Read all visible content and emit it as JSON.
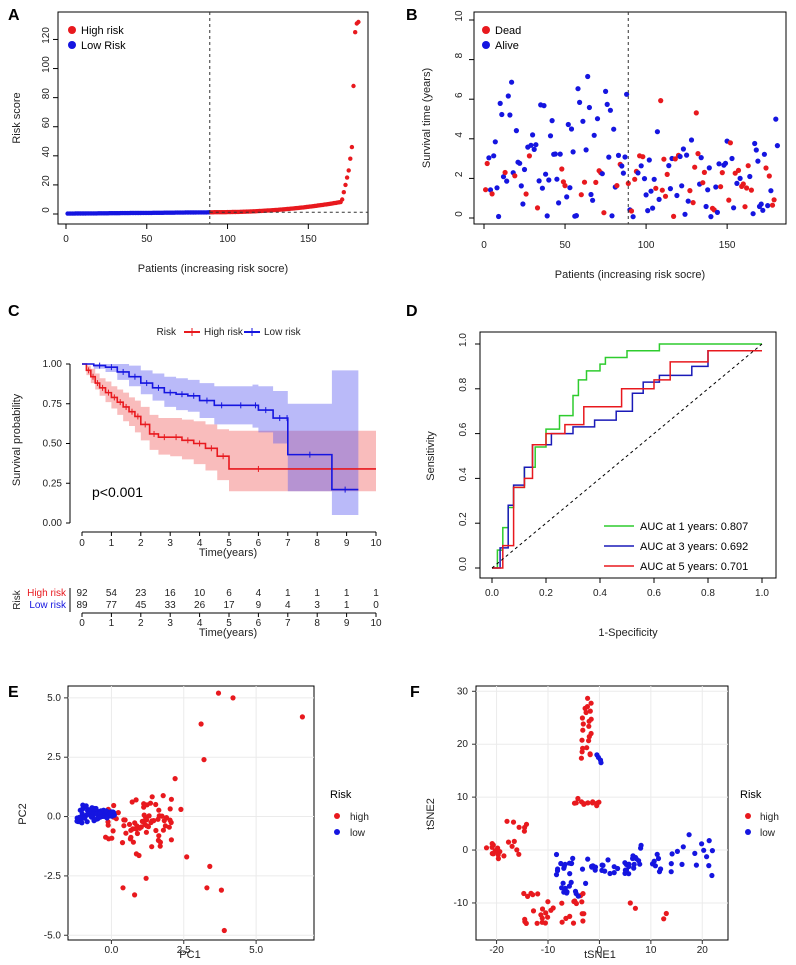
{
  "chart_data": [
    {
      "panel": "A",
      "type": "scatter",
      "xlabel": "Patients (increasing risk socre)",
      "ylabel": "Risk score",
      "xlim": [
        0,
        182
      ],
      "ylim": [
        0,
        132
      ],
      "xticks": [
        0,
        50,
        100,
        150
      ],
      "yticks": [
        0,
        20,
        40,
        60,
        80,
        100,
        120
      ],
      "cutoff_index": 89,
      "cutoff_score": 1.2,
      "n_low": 89,
      "n_high": 92,
      "series": [
        {
          "name": "High risk",
          "color": "#e8191e"
        },
        {
          "name": "Low Risk",
          "color": "#1515e0"
        }
      ],
      "tail_scores": [
        10,
        15,
        20,
        25,
        30,
        38,
        46,
        88,
        125,
        131,
        132
      ],
      "legend": "top-left"
    },
    {
      "panel": "B",
      "type": "scatter",
      "xlabel": "Patients (increasing risk socre)",
      "ylabel": "Survival time (years)",
      "xlim": [
        0,
        182
      ],
      "ylim": [
        0,
        10
      ],
      "xticks": [
        0,
        50,
        100,
        150
      ],
      "yticks": [
        0,
        2,
        4,
        6,
        8,
        10
      ],
      "cutoff_index": 89,
      "series": [
        {
          "name": "Dead",
          "color": "#e8191e"
        },
        {
          "name": "Alive",
          "color": "#1515e0"
        }
      ],
      "legend": "top-left"
    },
    {
      "panel": "C",
      "type": "line",
      "title": "Risk",
      "xlabel": "Time(years)",
      "ylabel": "Survival probability",
      "xlim": [
        0,
        10
      ],
      "ylim": [
        0,
        1
      ],
      "xticks": [
        0,
        1,
        2,
        3,
        4,
        5,
        6,
        7,
        8,
        9,
        10
      ],
      "yticks": [
        "0.00",
        "0.25",
        "0.50",
        "0.75",
        "1.00"
      ],
      "annotation": "p<0.001",
      "series": [
        {
          "name": "High risk",
          "color": "#e8191e",
          "x": [
            0,
            0.15,
            0.3,
            0.45,
            0.6,
            0.8,
            1.0,
            1.2,
            1.4,
            1.6,
            1.8,
            2.0,
            2.3,
            2.6,
            3.0,
            3.4,
            3.8,
            4.2,
            4.6,
            5.0,
            7.0,
            10.0
          ],
          "y": [
            1.0,
            0.96,
            0.92,
            0.88,
            0.85,
            0.82,
            0.79,
            0.76,
            0.73,
            0.7,
            0.67,
            0.62,
            0.56,
            0.54,
            0.54,
            0.52,
            0.5,
            0.47,
            0.42,
            0.34,
            0.34,
            0.34
          ],
          "lower": [
            1.0,
            0.93,
            0.88,
            0.84,
            0.8,
            0.76,
            0.72,
            0.68,
            0.64,
            0.61,
            0.57,
            0.52,
            0.46,
            0.43,
            0.42,
            0.4,
            0.37,
            0.33,
            0.27,
            0.2,
            0.2,
            0.2
          ],
          "upper": [
            1.0,
            0.99,
            0.97,
            0.94,
            0.91,
            0.89,
            0.86,
            0.84,
            0.82,
            0.79,
            0.77,
            0.73,
            0.68,
            0.66,
            0.66,
            0.65,
            0.64,
            0.62,
            0.59,
            0.58,
            0.58,
            0.58
          ]
        },
        {
          "name": "Low risk",
          "color": "#1515e0",
          "x": [
            0,
            0.4,
            0.8,
            1.2,
            1.6,
            2.0,
            2.4,
            2.8,
            3.2,
            3.6,
            4.0,
            4.5,
            5.0,
            5.8,
            6.0,
            6.5,
            6.95,
            7.0,
            8.5,
            9.4
          ],
          "y": [
            1.0,
            0.99,
            0.98,
            0.95,
            0.92,
            0.88,
            0.85,
            0.82,
            0.81,
            0.8,
            0.77,
            0.74,
            0.74,
            0.74,
            0.71,
            0.66,
            0.66,
            0.43,
            0.21,
            0.21
          ],
          "lower": [
            1.0,
            0.97,
            0.95,
            0.9,
            0.86,
            0.81,
            0.77,
            0.73,
            0.71,
            0.7,
            0.66,
            0.62,
            0.62,
            0.6,
            0.57,
            0.5,
            0.5,
            0.2,
            0.05,
            0.05
          ],
          "upper": [
            1.0,
            1.0,
            1.0,
            1.0,
            0.99,
            0.96,
            0.94,
            0.92,
            0.91,
            0.9,
            0.88,
            0.86,
            0.86,
            0.87,
            0.86,
            0.83,
            0.83,
            0.75,
            0.96,
            0.96
          ]
        }
      ],
      "risk_table": {
        "header": "Risk",
        "rows": [
          {
            "label": "High risk",
            "color": "#e8191e",
            "values": [
              "92",
              "54",
              "23",
              "16",
              "10",
              "6",
              "4",
              "1",
              "1",
              "1",
              "1"
            ]
          },
          {
            "label": "Low risk",
            "color": "#1515e0",
            "values": [
              "89",
              "77",
              "45",
              "33",
              "26",
              "17",
              "9",
              "4",
              "3",
              "1",
              "0"
            ]
          }
        ],
        "xlabel": "Time(years)"
      }
    },
    {
      "panel": "D",
      "type": "line",
      "xlabel": "1-Specificity",
      "ylabel": "Sensitivity",
      "xlim": [
        0,
        1
      ],
      "ylim": [
        0,
        1
      ],
      "ticks": [
        "0.0",
        "0.2",
        "0.4",
        "0.6",
        "0.8",
        "1.0"
      ],
      "series": [
        {
          "name": "AUC at 1 years: 0.807",
          "color": "#2ecc2e",
          "x": [
            0,
            0.02,
            0.02,
            0.04,
            0.04,
            0.06,
            0.06,
            0.08,
            0.08,
            0.12,
            0.12,
            0.16,
            0.16,
            0.2,
            0.2,
            0.25,
            0.25,
            0.3,
            0.3,
            0.32,
            0.32,
            0.35,
            0.35,
            0.4,
            0.4,
            0.42,
            0.42,
            0.5,
            0.5,
            0.62,
            0.62,
            1.0
          ],
          "y": [
            0,
            0,
            0.08,
            0.08,
            0.18,
            0.18,
            0.27,
            0.27,
            0.36,
            0.36,
            0.45,
            0.45,
            0.54,
            0.54,
            0.62,
            0.62,
            0.68,
            0.68,
            0.77,
            0.77,
            0.84,
            0.84,
            0.88,
            0.88,
            0.91,
            0.91,
            0.94,
            0.94,
            0.97,
            0.97,
            1.0,
            1.0
          ]
        },
        {
          "name": "AUC at 3 years: 0.692",
          "color": "#1a1ab8",
          "x": [
            0,
            0.03,
            0.03,
            0.06,
            0.06,
            0.08,
            0.08,
            0.12,
            0.12,
            0.15,
            0.15,
            0.22,
            0.22,
            0.3,
            0.3,
            0.38,
            0.38,
            0.46,
            0.46,
            0.52,
            0.52,
            0.56,
            0.56,
            0.62,
            0.62,
            0.74,
            0.74,
            0.8,
            0.8,
            1.0
          ],
          "y": [
            0,
            0,
            0.09,
            0.09,
            0.28,
            0.28,
            0.37,
            0.37,
            0.45,
            0.45,
            0.55,
            0.55,
            0.6,
            0.6,
            0.63,
            0.63,
            0.66,
            0.66,
            0.7,
            0.7,
            0.78,
            0.78,
            0.83,
            0.83,
            0.86,
            0.86,
            0.9,
            0.9,
            0.97,
            0.97
          ]
        },
        {
          "name": "AUC at 5 years: 0.701",
          "color": "#e8191e",
          "x": [
            0,
            0.04,
            0.04,
            0.08,
            0.08,
            0.12,
            0.12,
            0.15,
            0.15,
            0.2,
            0.2,
            0.27,
            0.27,
            0.34,
            0.34,
            0.48,
            0.48,
            0.6,
            0.6,
            0.66,
            0.66,
            0.8,
            0.8,
            1.0
          ],
          "y": [
            0,
            0,
            0.1,
            0.1,
            0.36,
            0.36,
            0.4,
            0.4,
            0.55,
            0.55,
            0.6,
            0.6,
            0.64,
            0.64,
            0.72,
            0.72,
            0.8,
            0.8,
            0.84,
            0.84,
            0.92,
            0.92,
            0.97,
            0.97
          ]
        },
        {
          "name": "diagonal",
          "color": "#000000",
          "dashed": true,
          "x": [
            0,
            1
          ],
          "y": [
            0,
            1
          ]
        }
      ],
      "legend": "bottom-right"
    },
    {
      "panel": "E",
      "type": "scatter",
      "xlabel": "PC1",
      "ylabel": "PC2",
      "xlim": [
        -1.5,
        7
      ],
      "ylim": [
        -5.2,
        5.5
      ],
      "xticks": [
        "0.0",
        "2.5",
        "5.0"
      ],
      "yticks": [
        "-5.0",
        "-2.5",
        "0.0",
        "2.5",
        "5.0"
      ],
      "legend_title": "Risk",
      "series": [
        {
          "name": "high",
          "color": "#e8191e"
        },
        {
          "name": "low",
          "color": "#1515e0"
        }
      ]
    },
    {
      "panel": "F",
      "type": "scatter",
      "xlabel": "tSNE1",
      "ylabel": "tSNE2",
      "xlim": [
        -24,
        25
      ],
      "ylim": [
        -17,
        31
      ],
      "xticks": [
        "-20",
        "-10",
        "0",
        "10",
        "20"
      ],
      "yticks": [
        "-10",
        "0",
        "10",
        "20",
        "30"
      ],
      "legend_title": "Risk",
      "series": [
        {
          "name": "high",
          "color": "#e8191e"
        },
        {
          "name": "low",
          "color": "#1515e0"
        }
      ]
    }
  ]
}
